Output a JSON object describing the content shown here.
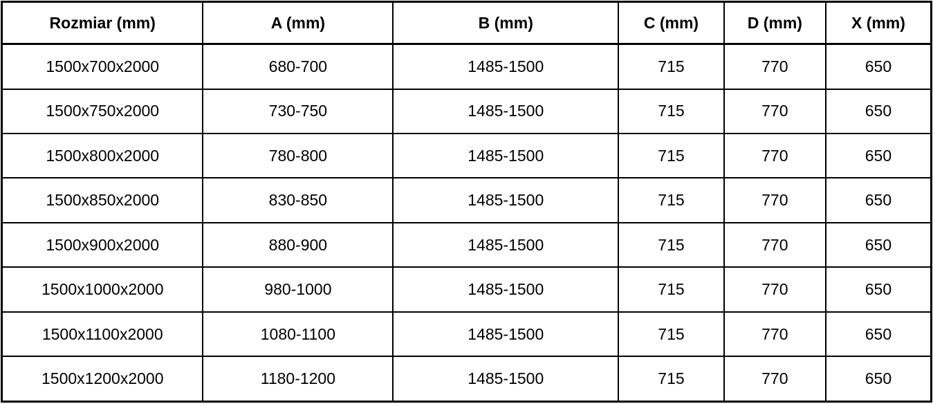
{
  "table": {
    "columns": [
      {
        "label": "Rozmiar (mm)"
      },
      {
        "label": "A (mm)"
      },
      {
        "label": "B (mm)"
      },
      {
        "label": "C (mm)"
      },
      {
        "label": "D (mm)"
      },
      {
        "label": "X (mm)"
      }
    ],
    "rows": [
      [
        "1500x700x2000",
        "680-700",
        "1485-1500",
        "715",
        "770",
        "650"
      ],
      [
        "1500x750x2000",
        "730-750",
        "1485-1500",
        "715",
        "770",
        "650"
      ],
      [
        "1500x800x2000",
        "780-800",
        "1485-1500",
        "715",
        "770",
        "650"
      ],
      [
        "1500x850x2000",
        "830-850",
        "1485-1500",
        "715",
        "770",
        "650"
      ],
      [
        "1500x900x2000",
        "880-900",
        "1485-1500",
        "715",
        "770",
        "650"
      ],
      [
        "1500x1000x2000",
        "980-1000",
        "1485-1500",
        "715",
        "770",
        "650"
      ],
      [
        "1500x1100x2000",
        "1080-1100",
        "1485-1500",
        "715",
        "770",
        "650"
      ],
      [
        "1500x1200x2000",
        "1180-1200",
        "1485-1500",
        "715",
        "770",
        "650"
      ]
    ]
  },
  "colors": {
    "border": "#000000",
    "background": "#ffffff",
    "text": "#000000"
  }
}
